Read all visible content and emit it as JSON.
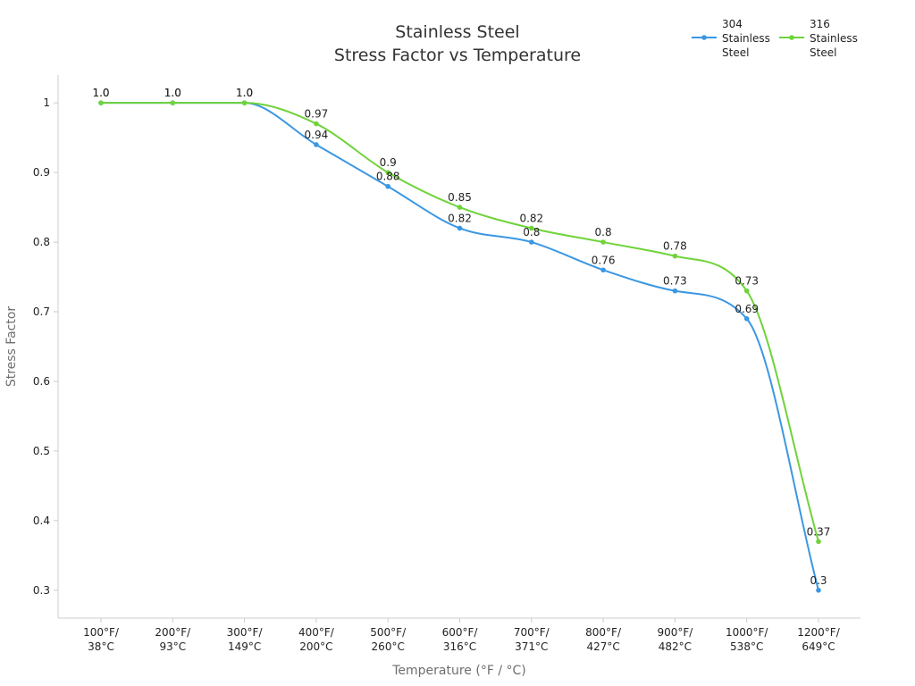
{
  "chart_data": {
    "type": "line",
    "title_lines": [
      "Stainless Steel",
      "Stress Factor vs Temperature"
    ],
    "xlabel": "Temperature (°F / °C)",
    "ylabel": "Stress Factor",
    "categories": [
      [
        "100°F/",
        "38°C"
      ],
      [
        "200°F/",
        "93°C"
      ],
      [
        "300°F/",
        "149°C"
      ],
      [
        "400°F/",
        "200°C"
      ],
      [
        "500°F/",
        "260°C"
      ],
      [
        "600°F/",
        "316°C"
      ],
      [
        "700°F/",
        "371°C"
      ],
      [
        "800°F/",
        "427°C"
      ],
      [
        "900°F/",
        "482°C"
      ],
      [
        "1000°F/",
        "538°C"
      ],
      [
        "1200°F/",
        "649°C"
      ]
    ],
    "ylim": [
      0.26,
      1.04
    ],
    "yticks": [
      "0.3",
      "0.4",
      "0.5",
      "0.6",
      "0.7",
      "0.8",
      "0.9",
      "1"
    ],
    "grid": false,
    "legend_position": "top-right",
    "series": [
      {
        "name_lines": [
          "304",
          "Stainless",
          "Steel"
        ],
        "color": "#3b97e3",
        "values": [
          1.0,
          1.0,
          1.0,
          0.94,
          0.88,
          0.82,
          0.8,
          0.76,
          0.73,
          0.69,
          0.3
        ],
        "labels": [
          "1.0",
          "1.0",
          "1.0",
          "0.94",
          "0.88",
          "0.82",
          "0.8",
          "0.76",
          "0.73",
          "0.69",
          "0.3"
        ]
      },
      {
        "name_lines": [
          "316",
          "Stainless",
          "Steel"
        ],
        "color": "#6fd33a",
        "values": [
          1.0,
          1.0,
          1.0,
          0.97,
          0.9,
          0.85,
          0.82,
          0.8,
          0.78,
          0.73,
          0.37
        ],
        "labels": [
          "1.0",
          "1.0",
          "1.0",
          "0.97",
          "0.9",
          "0.85",
          "0.82",
          "0.8",
          "0.78",
          "0.73",
          "0.37"
        ]
      }
    ]
  }
}
